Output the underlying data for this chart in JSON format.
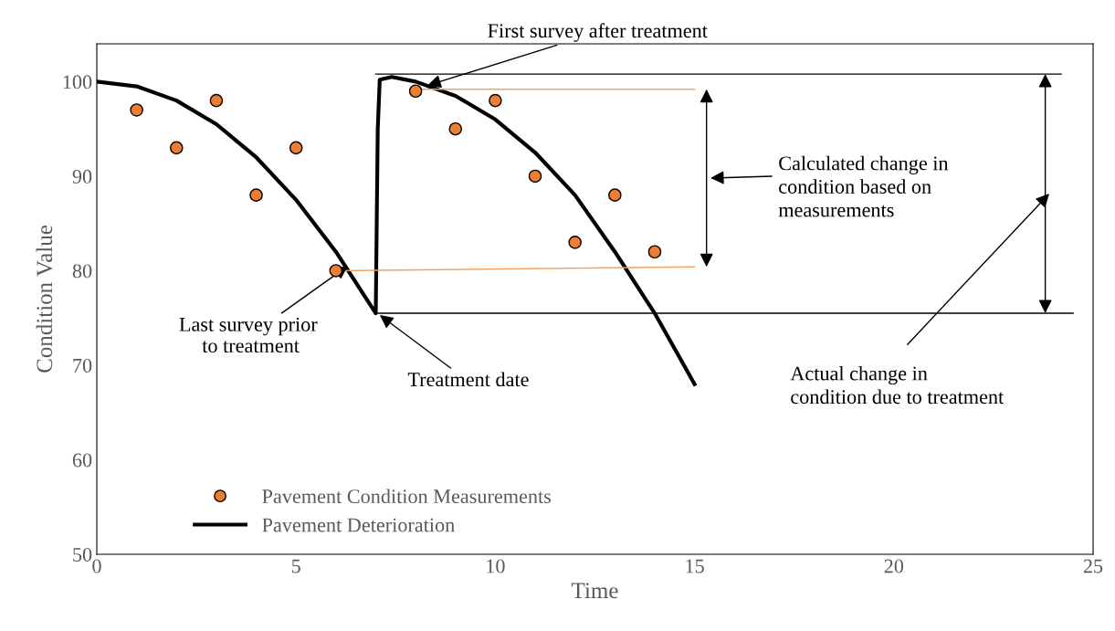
{
  "chart_data": {
    "type": "scatter",
    "xlabel": "Time",
    "ylabel": "Condition Value",
    "xlim": [
      0,
      25
    ],
    "xticks": [
      0,
      5,
      10,
      15,
      20,
      25
    ],
    "ylim": [
      50,
      104
    ],
    "yticks": [
      50,
      60,
      70,
      80,
      90,
      100
    ],
    "grid": false,
    "legend": "bottom left",
    "series": [
      {
        "name": "Pavement Condition Measurements",
        "marker": "circle",
        "color": "#ed7d31",
        "x": [
          1,
          2,
          3,
          4,
          5,
          6,
          8,
          9,
          10,
          11,
          12,
          13,
          14
        ],
        "values": [
          97,
          93,
          98,
          88,
          93,
          80,
          99,
          95,
          98,
          90,
          83,
          88,
          82
        ]
      },
      {
        "name": "Pavement Deterioration",
        "type": "line",
        "color": "#000000",
        "x": [
          0,
          1,
          2,
          3,
          4,
          5,
          6,
          7,
          7.05,
          7.1,
          7.4,
          8,
          9,
          10,
          11,
          12,
          13,
          14,
          15
        ],
        "values": [
          100,
          99.5,
          98,
          95.5,
          92,
          87.5,
          82,
          75.5,
          95,
          100.2,
          100.5,
          100,
          98.5,
          96,
          92.5,
          88,
          82,
          75.5,
          68
        ]
      },
      {
        "type": "line",
        "color": "#f4a261",
        "x": [
          8,
          15
        ],
        "values": [
          99.2,
          99.2
        ]
      },
      {
        "type": "line",
        "color": "#f4a261",
        "x": [
          6,
          15
        ],
        "values": [
          80,
          80.4
        ]
      },
      {
        "type": "line",
        "color": "#000000",
        "x": [
          7,
          24.2
        ],
        "values": [
          100.8,
          100.8
        ]
      },
      {
        "type": "line",
        "color": "#000000",
        "x": [
          7,
          24.5
        ],
        "values": [
          75.5,
          75.5
        ]
      }
    ],
    "annotations": [
      {
        "text": "First survey after treatment",
        "x": 8.3,
        "y": 99.6
      },
      {
        "text": "Last survey prior\n to treatment",
        "x": 6.3,
        "y": 80.5
      },
      {
        "text": "Treatment date",
        "x": 7.1,
        "y": 75.3
      },
      "Calculated change in\ncondition based on\nmeasurements",
      "Actual change in\ncondition due to treatment"
    ]
  }
}
